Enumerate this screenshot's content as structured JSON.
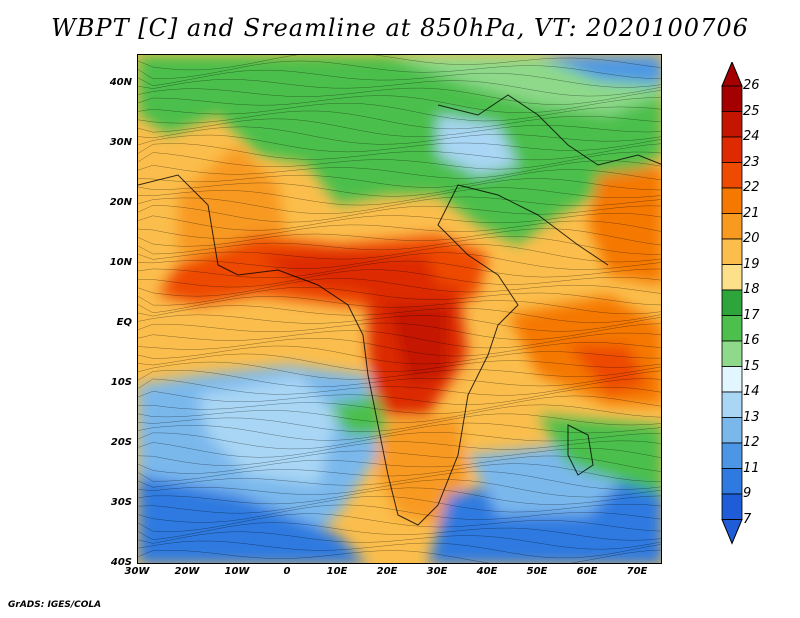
{
  "title": "WBPT [C] and Sreamline at 850hPa, VT: 2020100706",
  "credit": "GrADS: IGES/COLA",
  "map": {
    "lon_range": [
      -30,
      75
    ],
    "lat_range": [
      -40,
      45
    ],
    "lat_labels": [
      "40N",
      "30N",
      "20N",
      "10N",
      "EQ",
      "10S",
      "20S",
      "30S",
      "40S"
    ],
    "lat_values": [
      40,
      30,
      20,
      10,
      0,
      -10,
      -20,
      -30,
      -40
    ],
    "lon_labels": [
      "30W",
      "20W",
      "10W",
      "0",
      "10E",
      "20E",
      "30E",
      "40E",
      "50E",
      "60E",
      "70E"
    ],
    "lon_values": [
      -30,
      -20,
      -10,
      0,
      10,
      20,
      30,
      40,
      50,
      60,
      70
    ]
  },
  "colorbar": {
    "levels": [
      "26",
      "25",
      "24",
      "23",
      "22",
      "21",
      "20",
      "19",
      "18",
      "17",
      "16",
      "15",
      "14",
      "13",
      "12",
      "11",
      "9",
      "7"
    ],
    "colors": [
      "#a50000",
      "#c41500",
      "#dd2a00",
      "#ee4a00",
      "#f57800",
      "#f89a20",
      "#fbbe4c",
      "#fde08a",
      "#2ea53a",
      "#4cbf4c",
      "#8ed98a",
      "#e1f6ff",
      "#a9d6f4",
      "#7ab8ec",
      "#4b97e6",
      "#2f7ae0",
      "#1f5cd8"
    ],
    "end_top": "#a50000",
    "end_bottom": "#1f5cd8"
  }
}
